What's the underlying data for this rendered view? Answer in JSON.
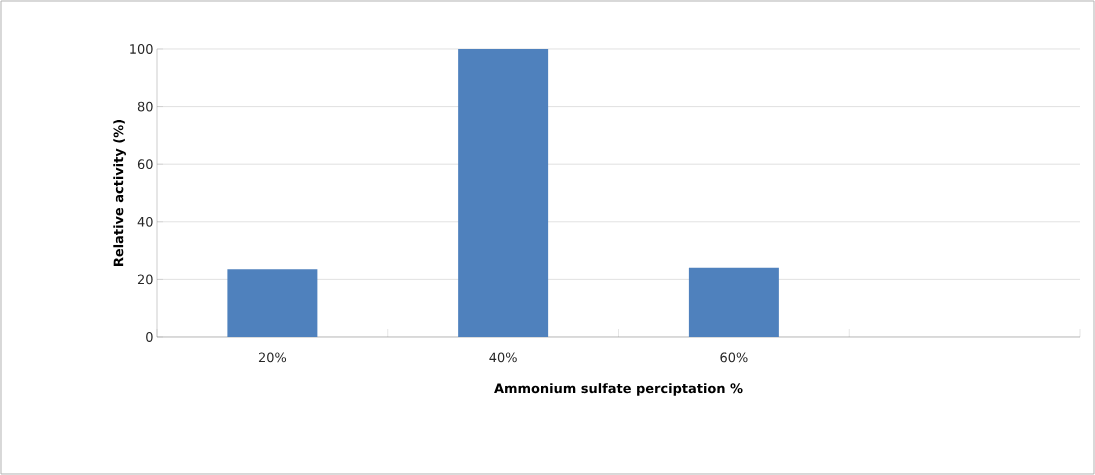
{
  "chart_data": {
    "type": "bar",
    "xlabel": "Ammonium sulfate perciptation %",
    "ylabel": "Relative activity (%)",
    "categories": [
      "20%",
      "40%",
      "60%",
      null
    ],
    "values": [
      23.5,
      100,
      24,
      null
    ],
    "color": "#4f81bd",
    "ylim": [
      0,
      100
    ],
    "yticks": [
      0,
      20,
      40,
      60,
      80,
      100
    ],
    "grid": "y"
  }
}
